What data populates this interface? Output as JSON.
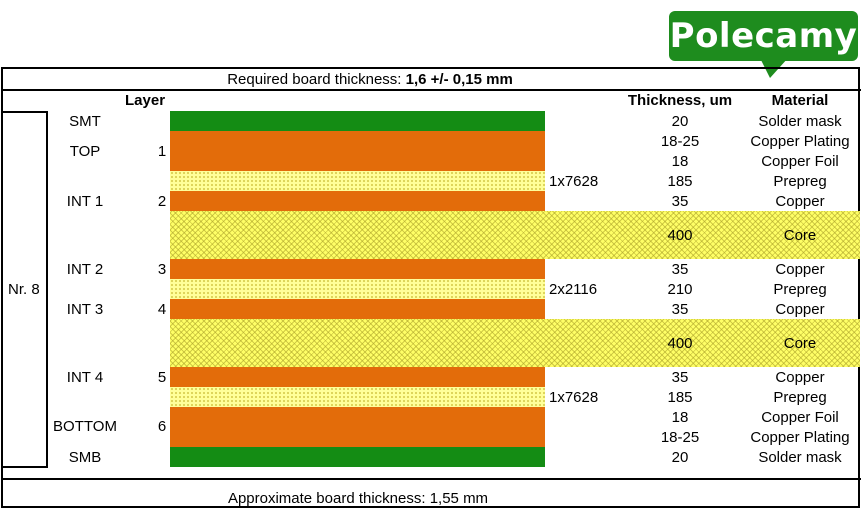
{
  "header": {
    "required_label": "Required board thickness: ",
    "required_value": "1,6 +/- 0,15 mm"
  },
  "footer": {
    "approximate": "Approximate board thickness: 1,55 mm"
  },
  "badge": {
    "text": "Polecamy",
    "color": "#1e8c1e"
  },
  "stackup": {
    "nr_label": "Nr. 8",
    "layer_header": "Layer",
    "thickness_header": "Thickness, um",
    "material_header": "Material",
    "rows": [
      {
        "name": "SMT",
        "num": "",
        "prepreg": "",
        "thickness": "20",
        "material": "Solder mask"
      },
      {
        "name": "TOP",
        "num": "1",
        "prepreg": "",
        "thickness": "18-25",
        "material": "Copper Plating"
      },
      {
        "name": "",
        "num": "",
        "prepreg": "",
        "thickness": "18",
        "material": "Copper Foil"
      },
      {
        "name": "",
        "num": "",
        "prepreg": "1x7628",
        "thickness": "185",
        "material": "Prepreg"
      },
      {
        "name": "INT 1",
        "num": "2",
        "prepreg": "",
        "thickness": "35",
        "material": "Copper"
      },
      {
        "name": "",
        "num": "",
        "prepreg": "",
        "thickness": "400",
        "material": "Core"
      },
      {
        "name": "INT 2",
        "num": "3",
        "prepreg": "",
        "thickness": "35",
        "material": "Copper"
      },
      {
        "name": "",
        "num": "",
        "prepreg": "2x2116",
        "thickness": "210",
        "material": "Prepreg"
      },
      {
        "name": "INT 3",
        "num": "4",
        "prepreg": "",
        "thickness": "35",
        "material": "Copper"
      },
      {
        "name": "",
        "num": "",
        "prepreg": "",
        "thickness": "400",
        "material": "Core"
      },
      {
        "name": "INT 4",
        "num": "5",
        "prepreg": "",
        "thickness": "35",
        "material": "Copper"
      },
      {
        "name": "",
        "num": "",
        "prepreg": "1x7628",
        "thickness": "185",
        "material": "Prepreg"
      },
      {
        "name": "BOTTOM",
        "num": "6",
        "prepreg": "",
        "thickness": "18",
        "material": "Copper Foil"
      },
      {
        "name": "",
        "num": "",
        "prepreg": "",
        "thickness": "18-25",
        "material": "Copper Plating"
      },
      {
        "name": "SMB",
        "num": "",
        "prepreg": "",
        "thickness": "20",
        "material": "Solder mask"
      }
    ]
  },
  "colors": {
    "solder_mask": "#148c14",
    "copper": "#e36c0a",
    "prepreg": "#ffff99",
    "core": "#ffff66"
  }
}
